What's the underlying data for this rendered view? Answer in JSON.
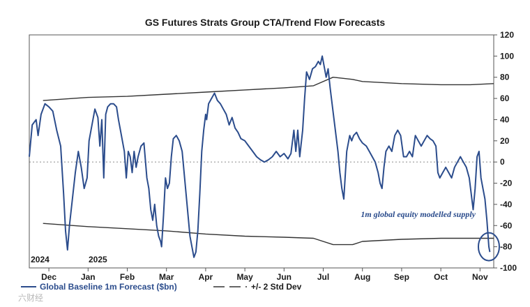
{
  "chart_data": {
    "type": "line",
    "title": "GS Futures Strats Group CTA/Trend Flow Forecasts",
    "ylim": [
      -100,
      120
    ],
    "yticks": [
      120,
      100,
      80,
      60,
      40,
      20,
      0,
      -20,
      -40,
      -60,
      -80,
      -100
    ],
    "x_range": [
      0,
      23.7
    ],
    "months": [
      {
        "label": "Dec",
        "x": 1
      },
      {
        "label": "Jan",
        "x": 3
      },
      {
        "label": "Feb",
        "x": 5
      },
      {
        "label": "Mar",
        "x": 7
      },
      {
        "label": "Apr",
        "x": 9
      },
      {
        "label": "May",
        "x": 11
      },
      {
        "label": "Jun",
        "x": 13
      },
      {
        "label": "Jul",
        "x": 15
      },
      {
        "label": "Aug",
        "x": 17
      },
      {
        "label": "Sep",
        "x": 19
      },
      {
        "label": "Oct",
        "x": 21
      },
      {
        "label": "Nov",
        "x": 23
      }
    ],
    "years": [
      {
        "label": "2024",
        "x": 0.55
      },
      {
        "label": "2025",
        "x": 3.5
      }
    ],
    "series": [
      {
        "name": "Global Baseline 1m Forecast ($bn)",
        "color": "#2b4c8c",
        "points": [
          [
            0.0,
            5
          ],
          [
            0.15,
            35
          ],
          [
            0.35,
            40
          ],
          [
            0.45,
            25
          ],
          [
            0.6,
            45
          ],
          [
            0.8,
            55
          ],
          [
            1.0,
            52
          ],
          [
            1.2,
            48
          ],
          [
            1.4,
            30
          ],
          [
            1.6,
            15
          ],
          [
            1.75,
            -30
          ],
          [
            1.85,
            -65
          ],
          [
            1.95,
            -83
          ],
          [
            2.05,
            -60
          ],
          [
            2.2,
            -35
          ],
          [
            2.35,
            -10
          ],
          [
            2.5,
            10
          ],
          [
            2.65,
            -5
          ],
          [
            2.8,
            -25
          ],
          [
            2.95,
            -15
          ],
          [
            3.05,
            20
          ],
          [
            3.2,
            35
          ],
          [
            3.35,
            50
          ],
          [
            3.5,
            42
          ],
          [
            3.6,
            15
          ],
          [
            3.7,
            40
          ],
          [
            3.8,
            -15
          ],
          [
            3.9,
            45
          ],
          [
            4.0,
            52
          ],
          [
            4.15,
            55
          ],
          [
            4.3,
            55
          ],
          [
            4.45,
            52
          ],
          [
            4.55,
            40
          ],
          [
            4.65,
            30
          ],
          [
            4.75,
            20
          ],
          [
            4.85,
            10
          ],
          [
            4.95,
            -15
          ],
          [
            5.05,
            10
          ],
          [
            5.15,
            5
          ],
          [
            5.25,
            -10
          ],
          [
            5.35,
            10
          ],
          [
            5.45,
            -5
          ],
          [
            5.55,
            5
          ],
          [
            5.7,
            15
          ],
          [
            5.85,
            18
          ],
          [
            6.0,
            -15
          ],
          [
            6.1,
            -25
          ],
          [
            6.2,
            -45
          ],
          [
            6.3,
            -55
          ],
          [
            6.4,
            -40
          ],
          [
            6.5,
            -60
          ],
          [
            6.6,
            -70
          ],
          [
            6.7,
            -75
          ],
          [
            6.75,
            -80
          ],
          [
            6.85,
            -50
          ],
          [
            6.95,
            -15
          ],
          [
            7.05,
            -25
          ],
          [
            7.15,
            -20
          ],
          [
            7.25,
            5
          ],
          [
            7.35,
            22
          ],
          [
            7.5,
            25
          ],
          [
            7.65,
            20
          ],
          [
            7.8,
            10
          ],
          [
            7.9,
            -10
          ],
          [
            8.0,
            -30
          ],
          [
            8.1,
            -50
          ],
          [
            8.2,
            -70
          ],
          [
            8.3,
            -80
          ],
          [
            8.4,
            -90
          ],
          [
            8.5,
            -85
          ],
          [
            8.6,
            -65
          ],
          [
            8.7,
            -30
          ],
          [
            8.8,
            10
          ],
          [
            8.9,
            30
          ],
          [
            9.0,
            45
          ],
          [
            9.05,
            40
          ],
          [
            9.15,
            55
          ],
          [
            9.3,
            60
          ],
          [
            9.45,
            65
          ],
          [
            9.6,
            58
          ],
          [
            9.75,
            55
          ],
          [
            9.9,
            50
          ],
          [
            10.05,
            45
          ],
          [
            10.2,
            35
          ],
          [
            10.35,
            42
          ],
          [
            10.5,
            32
          ],
          [
            10.65,
            28
          ],
          [
            10.8,
            22
          ],
          [
            11.0,
            20
          ],
          [
            11.2,
            15
          ],
          [
            11.4,
            10
          ],
          [
            11.6,
            5
          ],
          [
            11.8,
            2
          ],
          [
            12.0,
            0
          ],
          [
            12.2,
            2
          ],
          [
            12.4,
            5
          ],
          [
            12.6,
            10
          ],
          [
            12.8,
            5
          ],
          [
            13.0,
            8
          ],
          [
            13.2,
            3
          ],
          [
            13.35,
            8
          ],
          [
            13.5,
            30
          ],
          [
            13.6,
            10
          ],
          [
            13.7,
            30
          ],
          [
            13.8,
            5
          ],
          [
            13.95,
            30
          ],
          [
            14.05,
            60
          ],
          [
            14.15,
            85
          ],
          [
            14.3,
            78
          ],
          [
            14.45,
            88
          ],
          [
            14.6,
            90
          ],
          [
            14.75,
            95
          ],
          [
            14.85,
            92
          ],
          [
            14.95,
            100
          ],
          [
            15.05,
            90
          ],
          [
            15.15,
            80
          ],
          [
            15.25,
            88
          ],
          [
            15.35,
            70
          ],
          [
            15.45,
            55
          ],
          [
            15.55,
            40
          ],
          [
            15.65,
            25
          ],
          [
            15.75,
            10
          ],
          [
            15.85,
            -10
          ],
          [
            15.95,
            -25
          ],
          [
            16.05,
            -35
          ],
          [
            16.1,
            -20
          ],
          [
            16.2,
            10
          ],
          [
            16.35,
            25
          ],
          [
            16.45,
            20
          ],
          [
            16.55,
            25
          ],
          [
            16.7,
            28
          ],
          [
            16.85,
            22
          ],
          [
            17.0,
            18
          ],
          [
            17.2,
            15
          ],
          [
            17.35,
            10
          ],
          [
            17.5,
            5
          ],
          [
            17.65,
            0
          ],
          [
            17.8,
            -10
          ],
          [
            17.9,
            -20
          ],
          [
            18.0,
            -25
          ],
          [
            18.1,
            -5
          ],
          [
            18.2,
            10
          ],
          [
            18.35,
            15
          ],
          [
            18.5,
            10
          ],
          [
            18.65,
            25
          ],
          [
            18.8,
            30
          ],
          [
            18.95,
            25
          ],
          [
            19.1,
            5
          ],
          [
            19.25,
            5
          ],
          [
            19.4,
            10
          ],
          [
            19.55,
            5
          ],
          [
            19.7,
            25
          ],
          [
            19.85,
            20
          ],
          [
            20.0,
            15
          ],
          [
            20.15,
            20
          ],
          [
            20.3,
            25
          ],
          [
            20.45,
            22
          ],
          [
            20.6,
            20
          ],
          [
            20.75,
            15
          ],
          [
            20.85,
            -10
          ],
          [
            20.95,
            -15
          ],
          [
            21.1,
            -10
          ],
          [
            21.25,
            -5
          ],
          [
            21.4,
            -10
          ],
          [
            21.55,
            -15
          ],
          [
            21.7,
            -5
          ],
          [
            21.85,
            0
          ],
          [
            22.0,
            5
          ],
          [
            22.15,
            0
          ],
          [
            22.3,
            -5
          ],
          [
            22.45,
            -15
          ],
          [
            22.55,
            -30
          ],
          [
            22.65,
            -45
          ],
          [
            22.75,
            -25
          ],
          [
            22.85,
            5
          ],
          [
            22.95,
            10
          ],
          [
            23.05,
            -15
          ],
          [
            23.15,
            -25
          ],
          [
            23.25,
            -35
          ],
          [
            23.35,
            -55
          ],
          [
            23.45,
            -80
          ],
          [
            23.5,
            -85
          ]
        ]
      },
      {
        "name": "+/- 2 Std Dev (upper)",
        "color": "#333333",
        "points": [
          [
            0.7,
            58
          ],
          [
            3.0,
            61
          ],
          [
            5.0,
            62
          ],
          [
            7.0,
            64
          ],
          [
            9.0,
            66
          ],
          [
            11.0,
            68
          ],
          [
            13.0,
            70
          ],
          [
            14.5,
            72
          ],
          [
            15.5,
            80
          ],
          [
            16.5,
            78
          ],
          [
            17.0,
            76
          ],
          [
            19.0,
            74
          ],
          [
            21.0,
            73
          ],
          [
            22.5,
            73
          ],
          [
            23.7,
            74
          ]
        ]
      },
      {
        "name": "+/- 2 Std Dev (lower)",
        "color": "#333333",
        "points": [
          [
            0.7,
            -58
          ],
          [
            3.0,
            -61
          ],
          [
            5.0,
            -63
          ],
          [
            7.0,
            -65
          ],
          [
            9.0,
            -68
          ],
          [
            11.0,
            -70
          ],
          [
            13.0,
            -71
          ],
          [
            14.5,
            -72
          ],
          [
            15.5,
            -78
          ],
          [
            16.5,
            -78
          ],
          [
            17.0,
            -75
          ],
          [
            19.0,
            -73
          ],
          [
            21.0,
            -72
          ],
          [
            22.5,
            -72
          ],
          [
            23.7,
            -72
          ]
        ]
      }
    ],
    "annotation": {
      "text": "1m global equity modelled supply",
      "x": 23.45,
      "y": -80
    },
    "legend": [
      {
        "label": "Global Baseline 1m Forecast ($bn)",
        "style": "solid",
        "color": "#2b4c8c"
      },
      {
        "label": "+/- 2 Std Dev",
        "style": "dashed",
        "color": "#333333"
      }
    ]
  },
  "watermark": "六财经"
}
